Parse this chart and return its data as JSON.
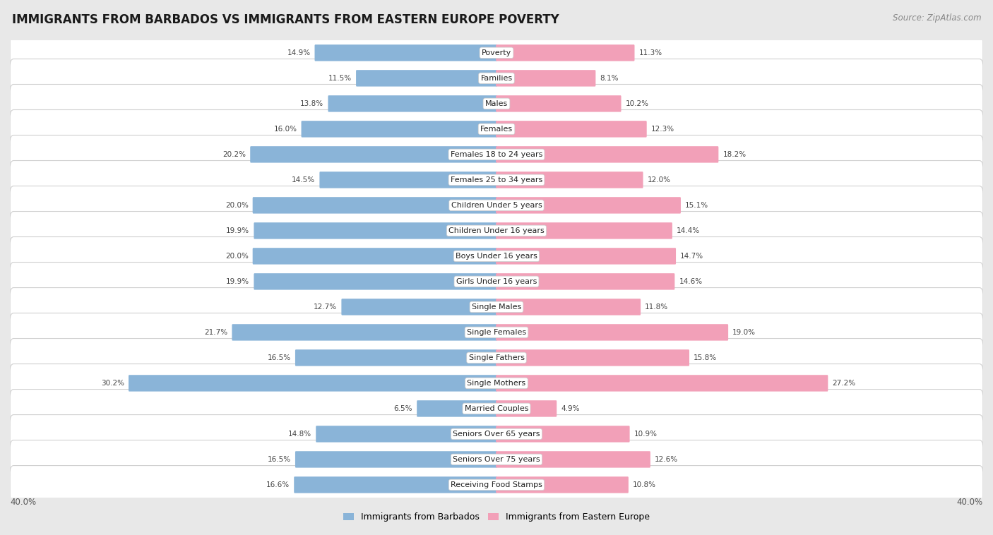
{
  "title": "IMMIGRANTS FROM BARBADOS VS IMMIGRANTS FROM EASTERN EUROPE POVERTY",
  "source": "Source: ZipAtlas.com",
  "categories": [
    "Poverty",
    "Families",
    "Males",
    "Females",
    "Females 18 to 24 years",
    "Females 25 to 34 years",
    "Children Under 5 years",
    "Children Under 16 years",
    "Boys Under 16 years",
    "Girls Under 16 years",
    "Single Males",
    "Single Females",
    "Single Fathers",
    "Single Mothers",
    "Married Couples",
    "Seniors Over 65 years",
    "Seniors Over 75 years",
    "Receiving Food Stamps"
  ],
  "left_values": [
    14.9,
    11.5,
    13.8,
    16.0,
    20.2,
    14.5,
    20.0,
    19.9,
    20.0,
    19.9,
    12.7,
    21.7,
    16.5,
    30.2,
    6.5,
    14.8,
    16.5,
    16.6
  ],
  "right_values": [
    11.3,
    8.1,
    10.2,
    12.3,
    18.2,
    12.0,
    15.1,
    14.4,
    14.7,
    14.6,
    11.8,
    19.0,
    15.8,
    27.2,
    4.9,
    10.9,
    12.6,
    10.8
  ],
  "left_color": "#8ab4d8",
  "right_color": "#f2a0b8",
  "left_label": "Immigrants from Barbados",
  "right_label": "Immigrants from Eastern Europe",
  "axis_max": 40.0,
  "bg_color": "#e8e8e8",
  "title_fontsize": 12,
  "source_fontsize": 8.5,
  "cat_fontsize": 8.0,
  "value_fontsize": 7.5,
  "legend_fontsize": 9,
  "axis_label_fontsize": 8.5
}
